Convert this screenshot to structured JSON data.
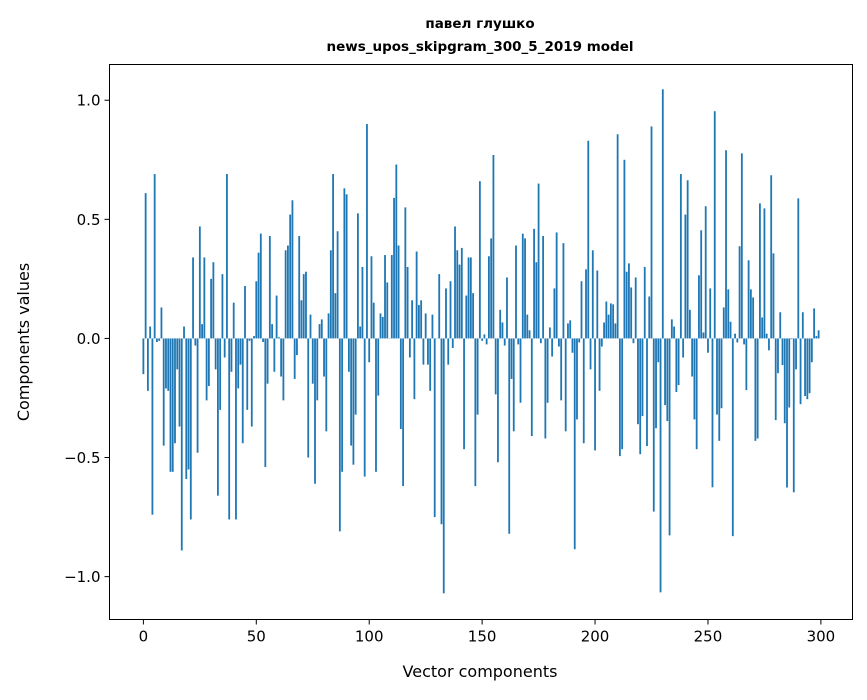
{
  "chart_data": {
    "type": "bar",
    "title": [
      "павел глушко",
      "news_upos_skipgram_300_5_2019 model"
    ],
    "xlabel": "Vector components",
    "ylabel": "Components values",
    "xlim": [
      -15,
      314
    ],
    "ylim": [
      -1.18,
      1.15
    ],
    "xticks": [
      0,
      50,
      100,
      150,
      200,
      250,
      300
    ],
    "xtick_labels": [
      "0",
      "50",
      "100",
      "150",
      "200",
      "250",
      "300"
    ],
    "yticks": [
      1.0,
      0.5,
      0.0,
      -0.5,
      -1.0
    ],
    "ytick_labels": [
      "1.0",
      "0.5",
      "0.0",
      "−0.5",
      "−1.0"
    ],
    "grid": false,
    "color": "#1f77b4",
    "values": [
      -0.15,
      0.61,
      -0.22,
      0.05,
      -0.74,
      0.69,
      -0.015,
      -0.01,
      0.13,
      -0.45,
      -0.21,
      -0.22,
      -0.56,
      -0.56,
      -0.44,
      -0.13,
      -0.37,
      -0.89,
      0.05,
      -0.59,
      -0.55,
      -0.76,
      0.34,
      -0.03,
      -0.48,
      0.47,
      0.06,
      0.34,
      -0.26,
      -0.2,
      0.25,
      0.32,
      -0.13,
      -0.66,
      -0.3,
      0.27,
      -0.08,
      0.69,
      -0.76,
      -0.14,
      0.15,
      -0.76,
      -0.21,
      -0.11,
      -0.44,
      0.22,
      -0.3,
      -0.01,
      -0.37,
      0.01,
      0.24,
      0.36,
      0.44,
      -0.015,
      -0.54,
      -0.19,
      0.43,
      0.06,
      -0.14,
      0.18,
      0.005,
      -0.16,
      -0.26,
      0.37,
      0.39,
      0.52,
      0.58,
      -0.17,
      -0.07,
      0.43,
      0.16,
      0.27,
      0.28,
      -0.5,
      0.1,
      -0.19,
      -0.61,
      -0.26,
      0.06,
      0.08,
      -0.16,
      -0.39,
      0.105,
      0.37,
      0.69,
      0.19,
      0.45,
      -0.81,
      -0.56,
      0.63,
      0.605,
      -0.14,
      -0.45,
      -0.53,
      -0.32,
      0.525,
      0.05,
      0.3,
      -0.58,
      0.9,
      -0.1,
      0.345,
      0.15,
      -0.56,
      -0.24,
      0.105,
      0.09,
      0.35,
      0.235,
      0.0,
      0.35,
      0.59,
      0.73,
      0.39,
      -0.38,
      -0.62,
      0.55,
      0.3,
      -0.08,
      0.16,
      -0.255,
      0.365,
      0.14,
      0.16,
      -0.11,
      0.105,
      -0.11,
      -0.22,
      0.1,
      -0.75,
      0.0,
      0.27,
      -0.78,
      -1.07,
      0.21,
      -0.11,
      0.24,
      -0.04,
      0.47,
      0.37,
      0.31,
      0.38,
      -0.465,
      0.18,
      0.34,
      0.34,
      0.19,
      -0.62,
      -0.32,
      0.66,
      -0.01,
      0.017,
      -0.025,
      0.345,
      0.42,
      0.77,
      -0.235,
      -0.52,
      0.12,
      0.067,
      -0.03,
      0.256,
      -0.82,
      -0.17,
      -0.39,
      0.39,
      -0.025,
      -0.27,
      0.44,
      0.42,
      0.1,
      0.034,
      -0.41,
      0.46,
      0.32,
      0.65,
      -0.02,
      0.43,
      -0.42,
      -0.27,
      0.046,
      -0.076,
      0.21,
      0.445,
      -0.034,
      -0.26,
      0.4,
      -0.39,
      0.063,
      0.076,
      -0.06,
      -0.885,
      -0.34,
      -0.017,
      0.24,
      -0.44,
      0.29,
      0.83,
      -0.13,
      0.37,
      -0.47,
      0.285,
      -0.22,
      -0.034,
      0.067,
      0.155,
      0.1,
      0.147,
      0.143,
      0.063,
      0.857,
      -0.494,
      -0.465,
      0.75,
      0.28,
      0.315,
      0.214,
      -0.02,
      0.256,
      -0.36,
      -0.486,
      -0.326,
      0.3,
      -0.452,
      0.176,
      0.89,
      -0.727,
      -0.377,
      -0.1,
      -1.066,
      1.046,
      -0.28,
      -0.347,
      -0.827,
      0.08,
      0.05,
      -0.225,
      -0.196,
      0.69,
      -0.08,
      0.52,
      0.664,
      0.12,
      -0.16,
      -0.34,
      -0.465,
      0.265,
      0.454,
      0.025,
      0.555,
      -0.06,
      0.21,
      -0.625,
      0.954,
      -0.32,
      -0.43,
      -0.293,
      0.13,
      0.79,
      0.206,
      0.07,
      -0.83,
      0.02,
      -0.017,
      0.387,
      0.777,
      -0.025,
      -0.217,
      0.328,
      0.206,
      0.172,
      -0.43,
      -0.42,
      0.567,
      0.088,
      0.546,
      0.02,
      -0.05,
      0.685,
      0.357,
      -0.343,
      -0.146,
      0.11,
      -0.112,
      -0.356,
      -0.626,
      -0.29,
      -0.003,
      -0.646,
      -0.13,
      0.588,
      -0.276,
      0.11,
      -0.242,
      -0.255,
      -0.23,
      -0.1,
      0.126,
      0.01,
      0.034
    ]
  }
}
